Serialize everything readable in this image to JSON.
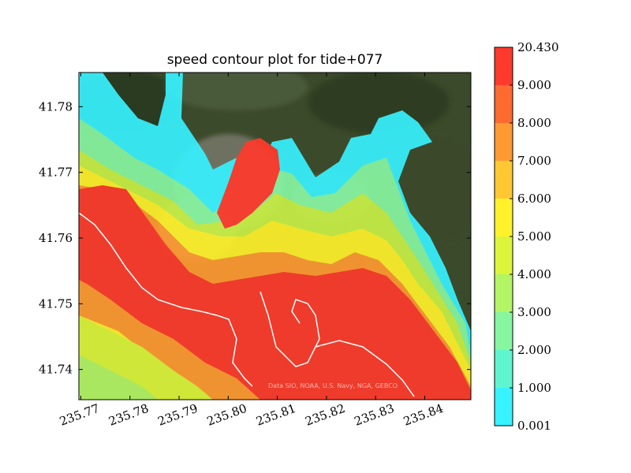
{
  "chart_data": {
    "type": "heatmap",
    "title": "speed contour plot for tide+077",
    "xlabel": "",
    "ylabel": "",
    "x_ticks": [
      235.77,
      235.78,
      235.79,
      235.8,
      235.81,
      235.82,
      235.83,
      235.84
    ],
    "x_tick_labels": [
      "235.77",
      "235.78",
      "235.79",
      "235.80",
      "235.81",
      "235.82",
      "235.83",
      "235.84"
    ],
    "y_ticks": [
      41.74,
      41.75,
      41.76,
      41.77,
      41.78
    ],
    "y_tick_labels": [
      "41.74",
      "41.75",
      "41.76",
      "41.77",
      "41.78"
    ],
    "xlim": [
      235.7696,
      235.8494
    ],
    "ylim": [
      41.7354,
      41.7852
    ],
    "colorbar": {
      "levels": [
        0.001,
        1.0,
        2.0,
        3.0,
        4.0,
        5.0,
        6.0,
        7.0,
        8.0,
        9.0,
        20.43
      ],
      "labels": [
        "0.001",
        "1.000",
        "2.000",
        "3.000",
        "4.000",
        "5.000",
        "6.000",
        "7.000",
        "8.000",
        "9.000",
        "20.430"
      ],
      "colors": [
        "#37f2ff",
        "#5ef5cf",
        "#86f6a1",
        "#b3f565",
        "#dcf53a",
        "#fff22a",
        "#ffc832",
        "#ff9a32",
        "#ff6a2e",
        "#ff3a2c"
      ]
    },
    "colormap": "jet-like (cyan to red), semi-transparent over satellite basemap",
    "basemap_attribution": "Data SIO, NOAA, U.S. Navy, NGA, GEBCO",
    "grid": false,
    "legend": "colorbar-right"
  }
}
